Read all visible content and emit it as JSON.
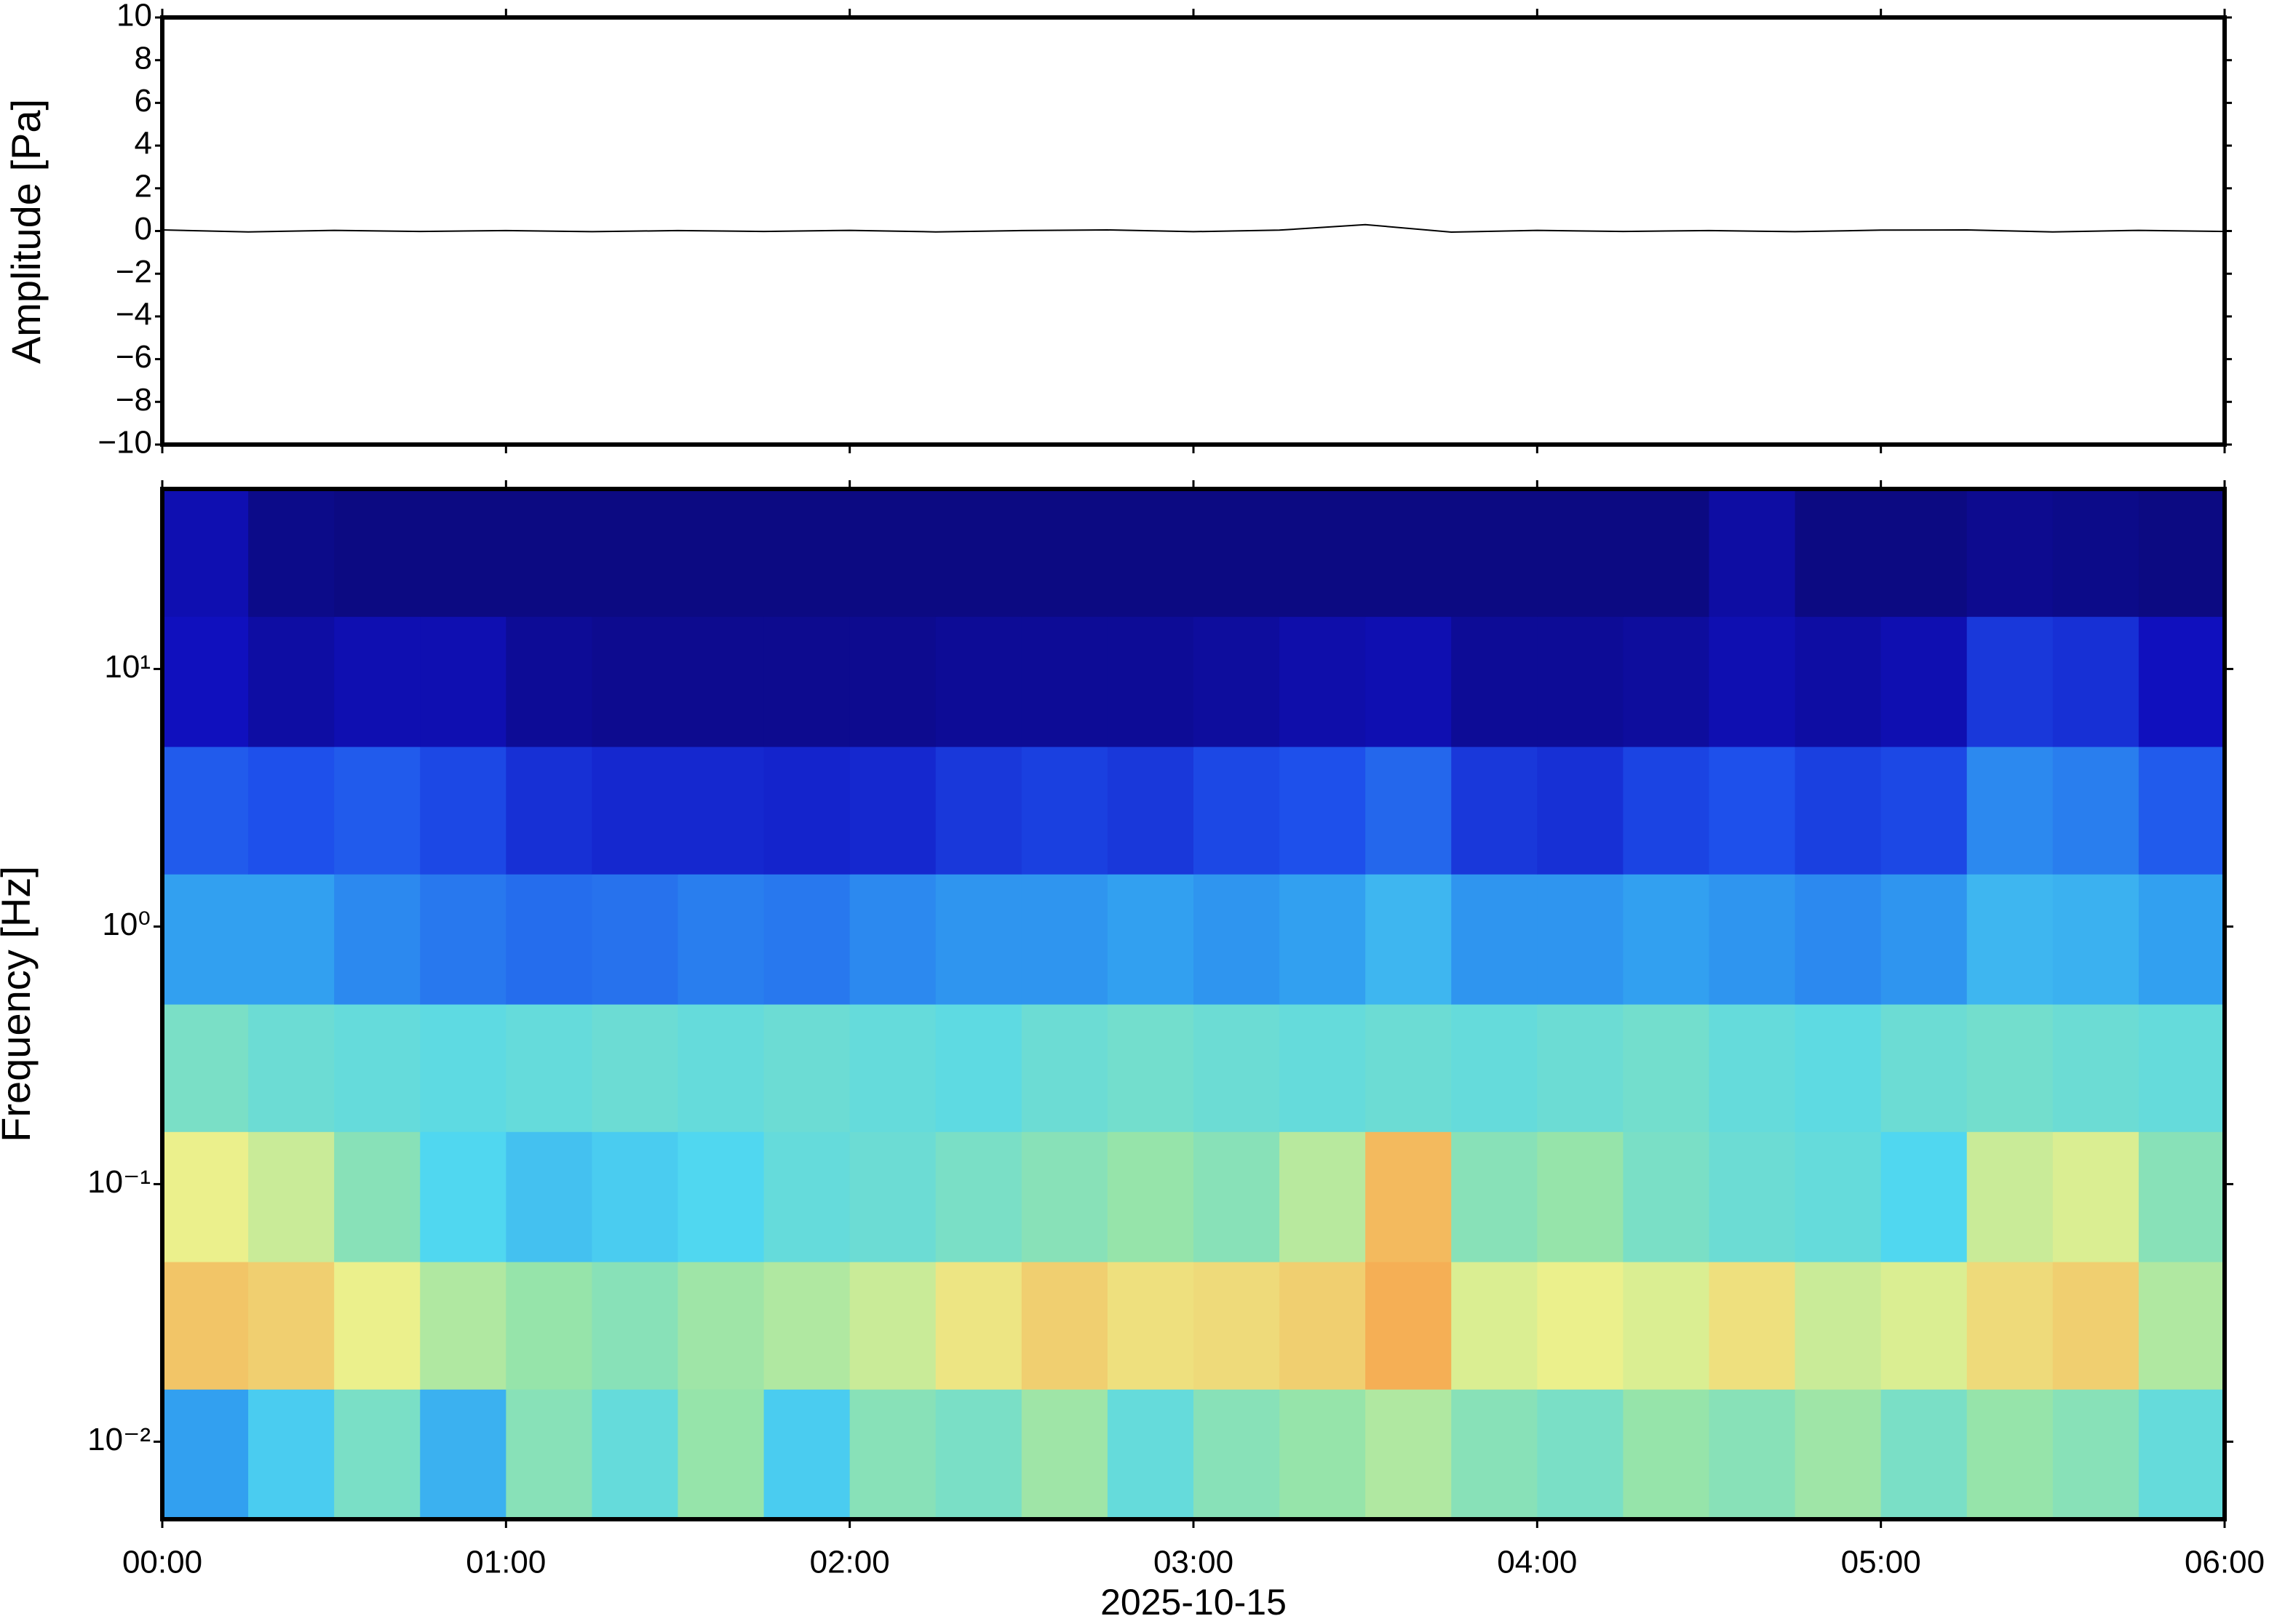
{
  "chart_data": [
    {
      "type": "line",
      "ylabel": "Amplitude [Pa]",
      "color": "#000000",
      "x": [
        0,
        15,
        30,
        45,
        60,
        75,
        90,
        105,
        120,
        135,
        150,
        165,
        180,
        195,
        210,
        225,
        240,
        255,
        270,
        285,
        300,
        315,
        330,
        345,
        360
      ],
      "values": [
        0.05,
        -0.04,
        0.03,
        -0.02,
        0.02,
        -0.03,
        0.02,
        -0.02,
        0.03,
        -0.04,
        0.02,
        0.05,
        -0.03,
        0.04,
        0.3,
        -0.05,
        0.03,
        -0.02,
        0.02,
        -0.03,
        0.04,
        0.05,
        -0.04,
        0.03,
        -0.02
      ],
      "xlim": [
        0,
        360
      ],
      "ylim": [
        -10,
        10
      ],
      "yticks": [
        {
          "value": -10,
          "label": "−10"
        },
        {
          "value": -8,
          "label": "−8"
        },
        {
          "value": -6,
          "label": "−6"
        },
        {
          "value": -4,
          "label": "−4"
        },
        {
          "value": -2,
          "label": "−2"
        },
        0,
        2,
        4,
        6,
        8,
        10
      ]
    },
    {
      "type": "heatmap",
      "ylabel": "Frequency [Hz]",
      "xlabel": "2025-10-15",
      "log_y": true,
      "xlim": [
        0,
        360
      ],
      "xticks": [
        {
          "value": 0,
          "label": "00:00"
        },
        {
          "value": 60,
          "label": "01:00"
        },
        {
          "value": 120,
          "label": "02:00"
        },
        {
          "value": 180,
          "label": "03:00"
        },
        {
          "value": 240,
          "label": "04:00"
        },
        {
          "value": 300,
          "label": "05:00"
        },
        {
          "value": 360,
          "label": "06:00"
        }
      ],
      "ylim": [
        0.005,
        50
      ],
      "yticks": [
        {
          "value": 0.01,
          "label": "10⁻²"
        },
        {
          "value": 0.1,
          "label": "10⁻¹"
        },
        {
          "value": 1,
          "label": "10⁰"
        },
        {
          "value": 10,
          "label": "10¹"
        }
      ],
      "x_bins": [
        0,
        15,
        30,
        45,
        60,
        75,
        90,
        105,
        120,
        135,
        150,
        165,
        180,
        195,
        210,
        225,
        240,
        255,
        270,
        285,
        300,
        315,
        330,
        345,
        360
      ],
      "y_bins": [
        0.005,
        0.016,
        0.05,
        0.16,
        0.5,
        1.6,
        5,
        16,
        50
      ],
      "z": [
        [
          0.42,
          0.5,
          0.58,
          0.45,
          0.6,
          0.55,
          0.62,
          0.5,
          0.6,
          0.58,
          0.63,
          0.55,
          0.6,
          0.62,
          0.65,
          0.6,
          0.58,
          0.62,
          0.6,
          0.63,
          0.58,
          0.62,
          0.6,
          0.55
        ],
        [
          0.8,
          0.78,
          0.72,
          0.65,
          0.62,
          0.6,
          0.63,
          0.65,
          0.68,
          0.74,
          0.78,
          0.75,
          0.76,
          0.78,
          0.84,
          0.7,
          0.72,
          0.7,
          0.75,
          0.68,
          0.7,
          0.76,
          0.78,
          0.65
        ],
        [
          0.72,
          0.68,
          0.6,
          0.52,
          0.48,
          0.5,
          0.52,
          0.55,
          0.56,
          0.58,
          0.6,
          0.62,
          0.6,
          0.66,
          0.82,
          0.6,
          0.62,
          0.58,
          0.56,
          0.55,
          0.52,
          0.68,
          0.7,
          0.6
        ],
        [
          0.58,
          0.56,
          0.55,
          0.54,
          0.55,
          0.56,
          0.55,
          0.56,
          0.55,
          0.54,
          0.56,
          0.57,
          0.56,
          0.55,
          0.56,
          0.55,
          0.56,
          0.57,
          0.55,
          0.54,
          0.56,
          0.57,
          0.56,
          0.55
        ],
        [
          0.42,
          0.42,
          0.38,
          0.35,
          0.33,
          0.34,
          0.36,
          0.35,
          0.38,
          0.4,
          0.4,
          0.42,
          0.4,
          0.42,
          0.46,
          0.4,
          0.4,
          0.42,
          0.4,
          0.38,
          0.4,
          0.46,
          0.45,
          0.42
        ],
        [
          0.3,
          0.28,
          0.3,
          0.26,
          0.2,
          0.18,
          0.18,
          0.17,
          0.18,
          0.22,
          0.24,
          0.22,
          0.26,
          0.28,
          0.32,
          0.22,
          0.2,
          0.25,
          0.28,
          0.24,
          0.26,
          0.38,
          0.36,
          0.3
        ],
        [
          0.12,
          0.08,
          0.1,
          0.1,
          0.06,
          0.05,
          0.05,
          0.05,
          0.05,
          0.06,
          0.06,
          0.06,
          0.07,
          0.09,
          0.1,
          0.06,
          0.06,
          0.07,
          0.1,
          0.08,
          0.1,
          0.22,
          0.2,
          0.12
        ],
        [
          0.1,
          0.04,
          0.03,
          0.03,
          0.03,
          0.03,
          0.03,
          0.03,
          0.03,
          0.03,
          0.03,
          0.03,
          0.03,
          0.03,
          0.03,
          0.03,
          0.03,
          0.03,
          0.08,
          0.03,
          0.03,
          0.05,
          0.04,
          0.03
        ]
      ]
    }
  ]
}
